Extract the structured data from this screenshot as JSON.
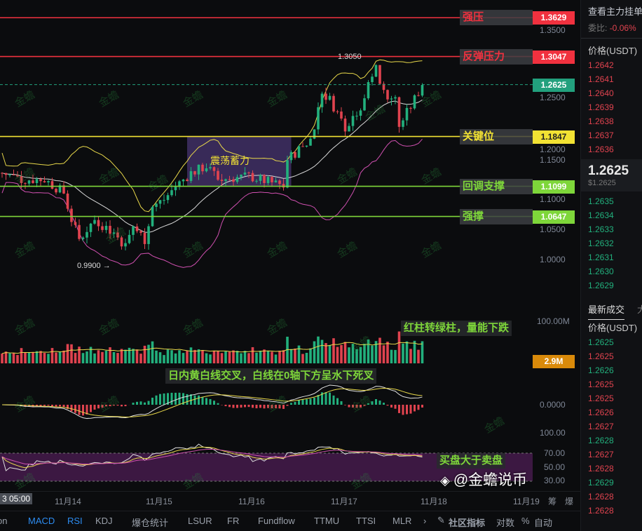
{
  "levels": [
    {
      "label": "强压",
      "price": 1.3629,
      "color": "#f0313f",
      "text_color": "#f0313f",
      "tag_text_color": "#ffffff"
    },
    {
      "label": "反弹压力",
      "price": 1.3047,
      "color": "#f0313f",
      "text_color": "#f0313f",
      "tag_text_color": "#ffffff"
    },
    {
      "label": "关键位",
      "price": 1.1847,
      "color": "#f2e233",
      "text_color": "#f2e233",
      "tag_text_color": "#222222"
    },
    {
      "label": "回调支撑",
      "price": 1.1099,
      "color": "#7ed63a",
      "text_color": "#7ed63a",
      "tag_text_color": "#ffffff"
    },
    {
      "label": "强撑",
      "price": 1.0647,
      "color": "#7ed63a",
      "text_color": "#7ed63a",
      "tag_text_color": "#ffffff"
    }
  ],
  "current_price": {
    "value": "1.2625",
    "color": "#22a07d"
  },
  "range_box": {
    "label": "震荡蓄力",
    "from": "11-15 06:00",
    "to": "11-16 09:00",
    "high": 1.1847,
    "low": 1.1099
  },
  "annotations": {
    "high": "1.3050",
    "low": "0.9900 →"
  },
  "price_axis": [
    "1.3500",
    "1.2500",
    "1.2000",
    "1.1500",
    "1.1000",
    "1.0500",
    "1.0000"
  ],
  "volume": {
    "axis": "100.00M",
    "current": "2.9M",
    "current_color": "#d98a0a"
  },
  "macd": {
    "axis": "0.0000"
  },
  "rsi": {
    "axis": [
      "100.00",
      "70.00",
      "50.00",
      "30.00"
    ]
  },
  "notes": {
    "volume": "红柱转绿柱，量能下跌",
    "macd": "日内黄白线交叉，白线在0轴下方呈水下死叉",
    "rsi": "买盘大于卖盘"
  },
  "time_axis": {
    "crosshair": "3 05:00",
    "labels": [
      "11月14",
      "11月15",
      "11月16",
      "11月17",
      "11月18",
      "11月19"
    ],
    "extra": [
      "筹",
      "爆"
    ]
  },
  "toolbar": {
    "items": [
      "on",
      "MACD",
      "RSI",
      "KDJ",
      "爆仓统计",
      "LSUR",
      "FR",
      "Fundflow",
      "TTMU",
      "TTSI",
      "MLR",
      "›",
      "社区指标",
      "对数",
      "%",
      "自动"
    ],
    "active": [
      "MACD",
      "RSI"
    ]
  },
  "watermark": "金蟾",
  "brand_watermark": "@金蟾说币",
  "orderbook": {
    "title": "查看主力挂单",
    "ratio_label": "委比:",
    "ratio": "-0.06%",
    "price_header": "价格(USDT)",
    "asks": [
      "1.2642",
      "1.2641",
      "1.2640",
      "1.2639",
      "1.2638",
      "1.2637",
      "1.2636"
    ],
    "last": "1.2625",
    "last_usd": "$1.2625",
    "bids": [
      "1.2635",
      "1.2634",
      "1.2633",
      "1.2632",
      "1.2631",
      "1.2630",
      "1.2629"
    ]
  },
  "trades": {
    "tab": "最新成交",
    "tab2": "大",
    "price_header": "价格(USDT)",
    "rows": [
      [
        "1.2625",
        "buy"
      ],
      [
        "1.2625",
        "sell"
      ],
      [
        "1.2626",
        "buy"
      ],
      [
        "1.2625",
        "sell"
      ],
      [
        "1.2625",
        "sell"
      ],
      [
        "1.2626",
        "sell"
      ],
      [
        "1.2627",
        "sell"
      ],
      [
        "1.2628",
        "buy"
      ],
      [
        "1.2627",
        "sell"
      ],
      [
        "1.2628",
        "sell"
      ],
      [
        "1.2629",
        "buy"
      ],
      [
        "1.2628",
        "sell"
      ],
      [
        "1.2628",
        "sell"
      ]
    ]
  },
  "chart_data": {
    "type": "candlestick",
    "interval": "1h",
    "colors": {
      "up": "#22b07d",
      "down": "#e0434f"
    },
    "price_path": [
      [
        "11-13 06:00",
        1.13
      ],
      [
        "11-13 11:00",
        1.12
      ],
      [
        "11-13 17:00",
        1.12
      ],
      [
        "11-13 22:00",
        1.1
      ],
      [
        "11-14 00:00",
        1.06
      ],
      [
        "11-14 02:00",
        1.03
      ],
      [
        "11-14 06:00",
        1.06
      ],
      [
        "11-14 11:00",
        1.04
      ],
      [
        "11-14 14:00",
        1.02
      ],
      [
        "11-14 16:00",
        1.05
      ],
      [
        "11-14 19:00",
        1.03
      ],
      [
        "11-14 21:00",
        1.08
      ],
      [
        "11-15 00:00",
        1.09
      ],
      [
        "11-15 03:00",
        1.11
      ],
      [
        "11-15 07:00",
        1.13
      ],
      [
        "11-15 11:00",
        1.14
      ],
      [
        "11-15 14:00",
        1.12
      ],
      [
        "11-15 22:00",
        1.125
      ],
      [
        "11-16 07:00",
        1.11
      ],
      [
        "11-16 08:00",
        1.15
      ],
      [
        "11-16 14:00",
        1.18
      ],
      [
        "11-16 17:00",
        1.25
      ],
      [
        "11-16 19:00",
        1.24
      ],
      [
        "11-16 23:00",
        1.2
      ],
      [
        "11-17 03:00",
        1.23
      ],
      [
        "11-17 05:00",
        1.26
      ],
      [
        "11-17 07:00",
        1.29
      ],
      [
        "11-17 09:00",
        1.25
      ],
      [
        "11-17 12:00",
        1.24
      ],
      [
        "11-17 13:00",
        1.2
      ],
      [
        "11-17 16:00",
        1.23
      ],
      [
        "11-17 19:00",
        1.262
      ]
    ]
  }
}
